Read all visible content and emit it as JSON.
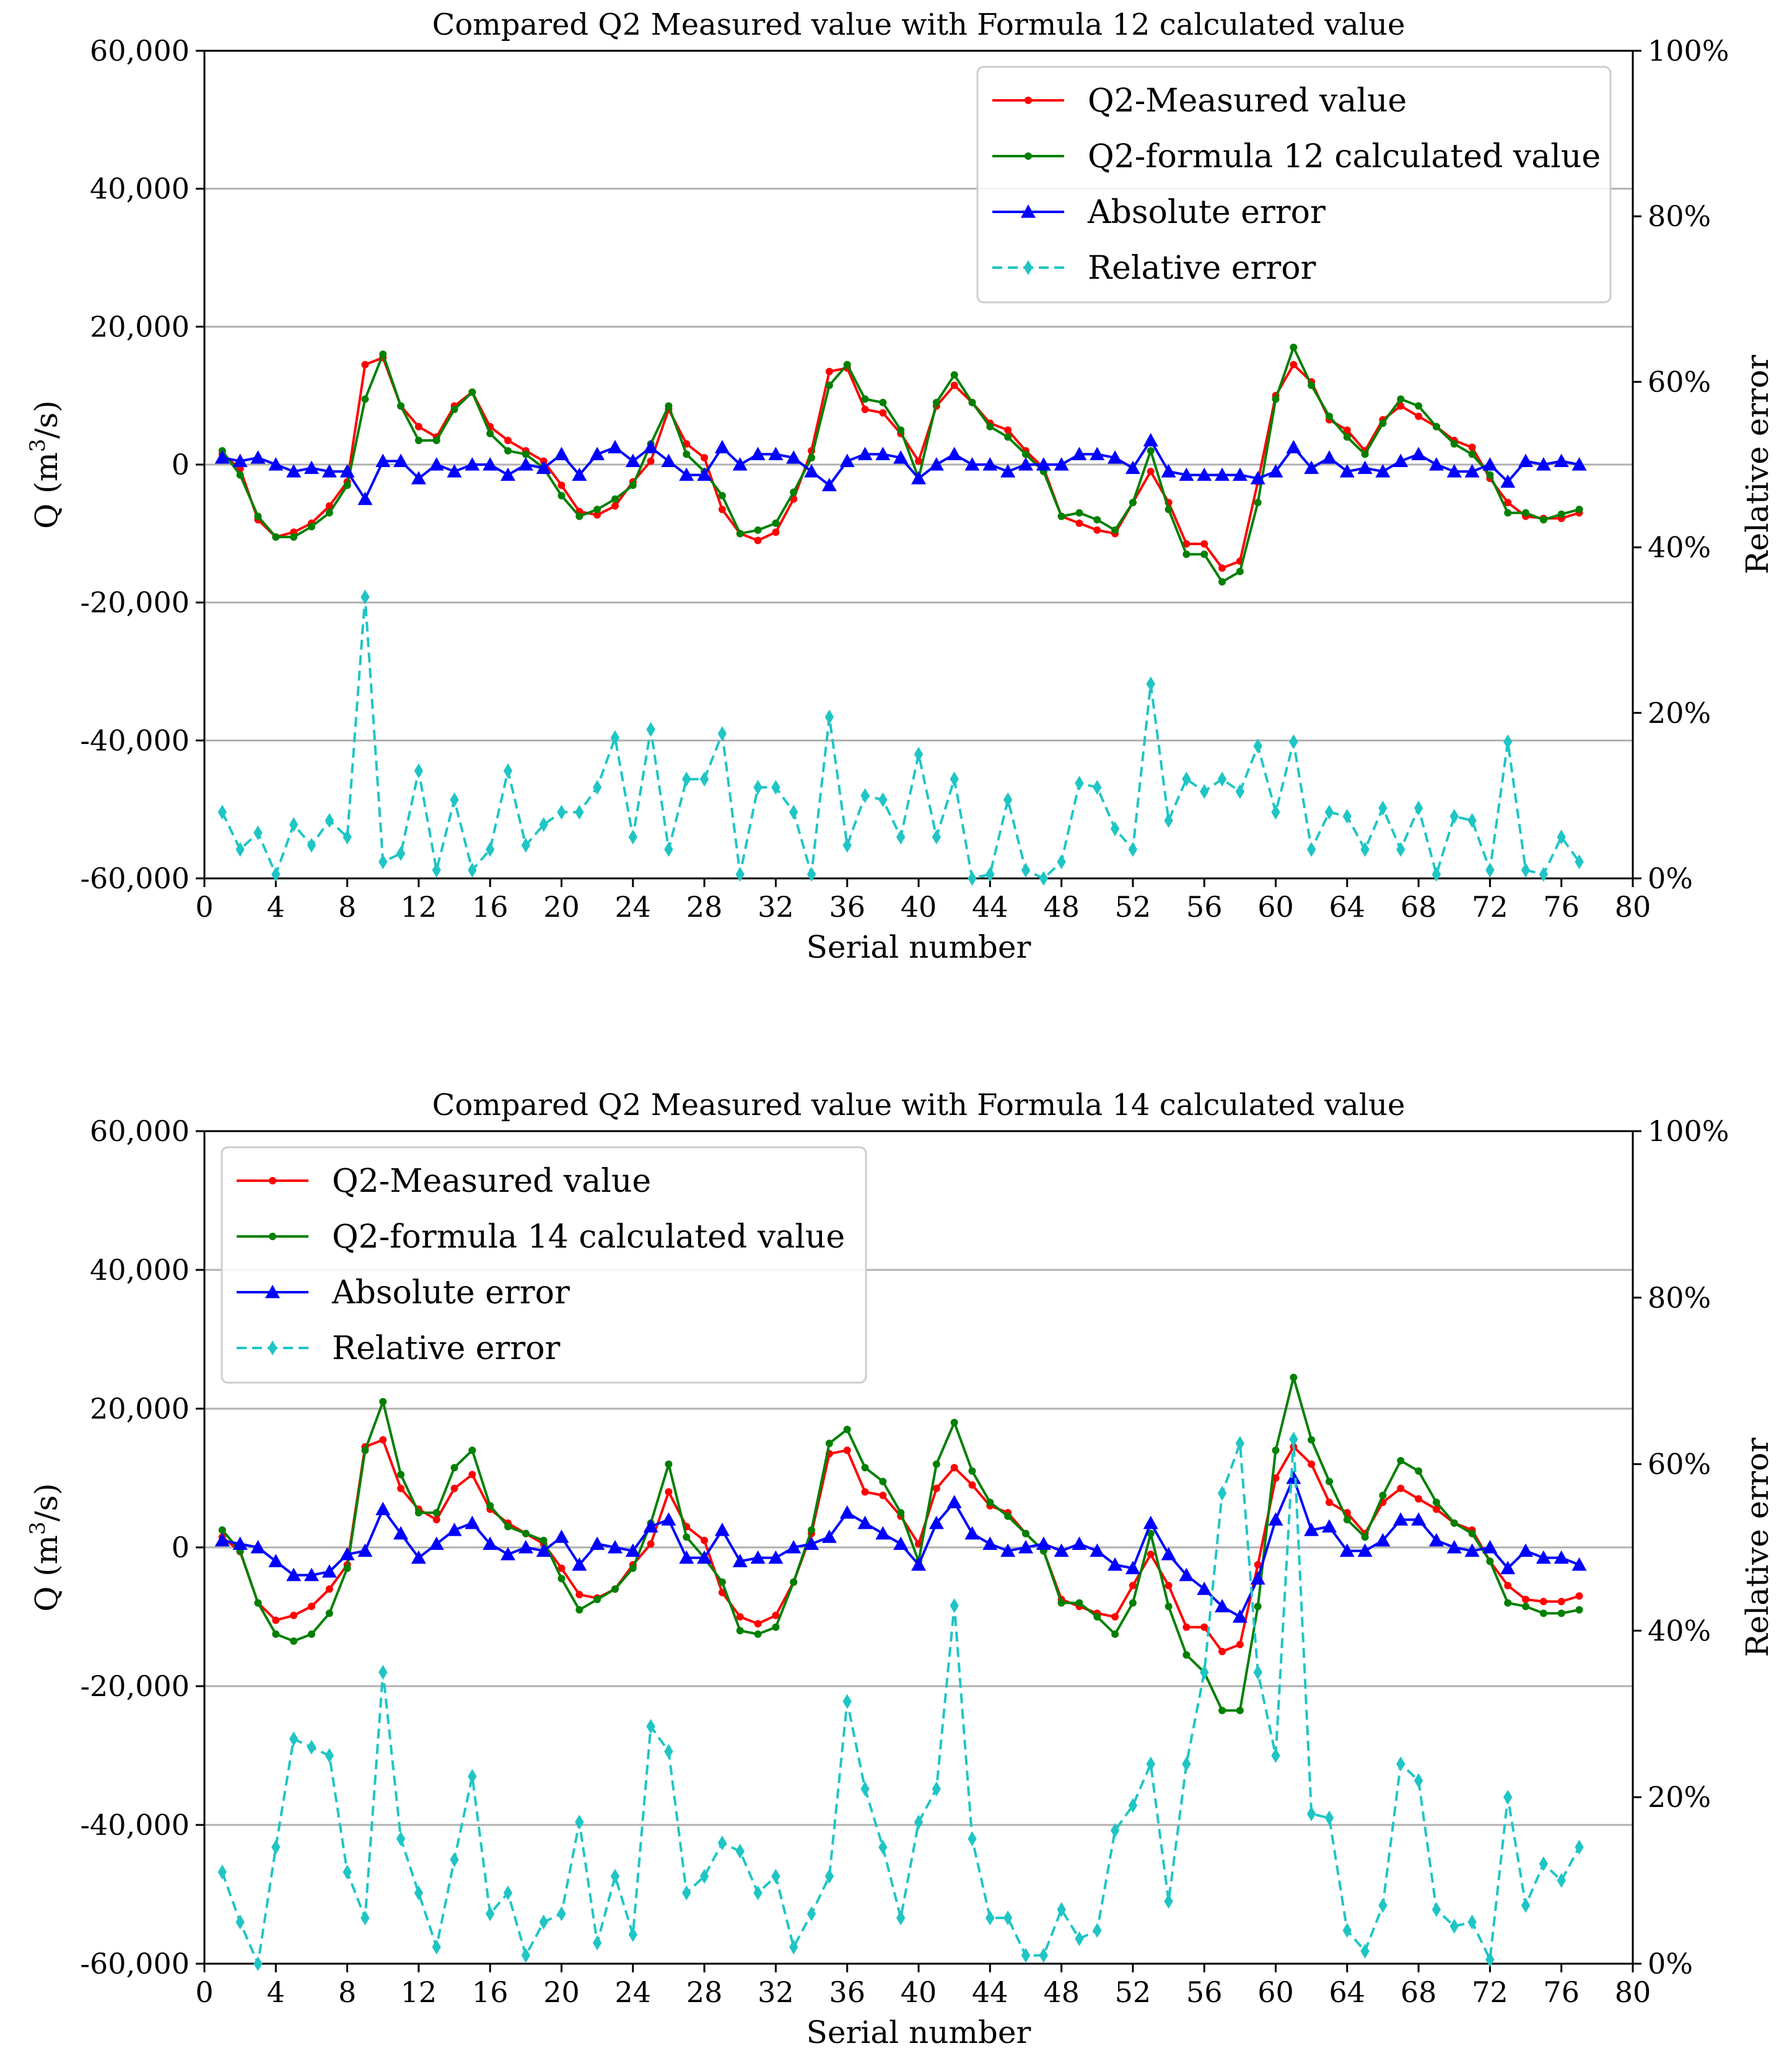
{
  "chart_data": [
    {
      "type": "line",
      "title": "Compared Q2 Measured value with Formula 12 calculated value",
      "xlabel": "Serial number",
      "ylabel": "Q (m3/s)",
      "ylabel_parts": {
        "pre": "Q (m",
        "sup": "3",
        "post": "/s)"
      },
      "y2label": "Relative error",
      "xlim": [
        0,
        80
      ],
      "ylim": [
        -60000,
        60000
      ],
      "y2lim": [
        0,
        100
      ],
      "x_ticks": [
        "0",
        "4",
        "8",
        "12",
        "16",
        "20",
        "24",
        "28",
        "32",
        "36",
        "40",
        "44",
        "48",
        "52",
        "56",
        "60",
        "64",
        "68",
        "72",
        "76",
        "80"
      ],
      "y_ticks": [
        "60,000",
        "40,000",
        "20,000",
        "0",
        "-20,000",
        "-40,000",
        "-60,000"
      ],
      "y2_ticks": [
        "100%",
        "80%",
        "60%",
        "40%",
        "20%",
        "0%"
      ],
      "grid": "horizontal",
      "legend_position": "top-right",
      "x": [
        1,
        2,
        3,
        4,
        5,
        6,
        7,
        8,
        9,
        10,
        11,
        12,
        13,
        14,
        15,
        16,
        17,
        18,
        19,
        20,
        21,
        22,
        23,
        24,
        25,
        26,
        27,
        28,
        29,
        30,
        31,
        32,
        33,
        34,
        35,
        36,
        37,
        38,
        39,
        40,
        41,
        42,
        43,
        44,
        45,
        46,
        47,
        48,
        49,
        50,
        51,
        52,
        53,
        54,
        55,
        56,
        57,
        58,
        59,
        60,
        61,
        62,
        63,
        64,
        65,
        66,
        67,
        68,
        69,
        70,
        71,
        72,
        73,
        74,
        75,
        76,
        77
      ],
      "series": [
        {
          "name": "Q2-Measured value",
          "axis": "left",
          "color": "#ff0000",
          "marker": "dot",
          "dash": false,
          "values": [
            1500,
            -600,
            -8000,
            -10500,
            -9800,
            -8500,
            -6000,
            -2500,
            14500,
            15500,
            8500,
            5500,
            4000,
            8500,
            10500,
            5500,
            3500,
            2000,
            500,
            -3000,
            -6800,
            -7300,
            -6000,
            -2500,
            500,
            8000,
            3000,
            1000,
            -6500,
            -10000,
            -11000,
            -9800,
            -5000,
            2000,
            13500,
            14000,
            8000,
            7500,
            4500,
            500,
            8500,
            11500,
            9000,
            6000,
            5000,
            2000,
            -500,
            -7500,
            -8500,
            -9500,
            -10000,
            -5500,
            -1000,
            -5500,
            -11500,
            -11500,
            -15000,
            -14000,
            -2500,
            10000,
            14500,
            12000,
            6500,
            5000,
            2000,
            6500,
            8500,
            7000,
            5500,
            3500,
            2500,
            -2000,
            -5500,
            -7500,
            -7800,
            -7800,
            -7000
          ]
        },
        {
          "name": "Q2-formula 12 calculated value",
          "axis": "left",
          "color": "#008000",
          "marker": "dot",
          "dash": false,
          "values": [
            2000,
            -1500,
            -7500,
            -10500,
            -10500,
            -9000,
            -7000,
            -3000,
            9500,
            16000,
            8500,
            3500,
            3500,
            8000,
            10500,
            4500,
            2000,
            1500,
            -500,
            -4500,
            -7500,
            -6500,
            -5000,
            -3000,
            3000,
            8500,
            1500,
            -1000,
            -4500,
            -10000,
            -9500,
            -8500,
            -4000,
            1000,
            11500,
            14500,
            9500,
            9000,
            5000,
            -2000,
            9000,
            13000,
            9000,
            5500,
            4000,
            1500,
            -1000,
            -7500,
            -7000,
            -8000,
            -9500,
            -5500,
            2000,
            -6500,
            -13000,
            -13000,
            -17000,
            -15500,
            -5500,
            9500,
            17000,
            11500,
            7000,
            4000,
            1500,
            6000,
            9500,
            8500,
            5500,
            3000,
            1500,
            -1500,
            -7000,
            -7000,
            -8000,
            -7200,
            -6500
          ]
        },
        {
          "name": "Absolute error",
          "axis": "left",
          "color": "#0000ff",
          "marker": "triangle",
          "dash": false,
          "values": [
            1000,
            500,
            1000,
            0,
            -1000,
            -500,
            -1000,
            -1000,
            -5000,
            500,
            500,
            -2000,
            0,
            -1000,
            0,
            0,
            -1500,
            0,
            -500,
            1500,
            -1500,
            1500,
            2500,
            500,
            2500,
            500,
            -1500,
            -1500,
            2500,
            0,
            1500,
            1500,
            1000,
            -1000,
            -3000,
            500,
            1500,
            1500,
            1000,
            -2000,
            0,
            1500,
            0,
            0,
            -1000,
            0,
            0,
            0,
            1500,
            1500,
            1000,
            -500,
            3500,
            -1000,
            -1500,
            -1500,
            -1500,
            -1500,
            -2000,
            -1000,
            2500,
            -500,
            1000,
            -1000,
            -500,
            -1000,
            500,
            1500,
            0,
            -1000,
            -1000,
            0,
            -2500,
            500,
            0,
            500,
            0
          ]
        },
        {
          "name": "Relative error",
          "axis": "right",
          "color": "#1fc5c5",
          "marker": "diamond",
          "dash": true,
          "values": [
            8,
            3.5,
            5.5,
            0.5,
            6.5,
            4,
            7,
            5,
            34,
            2,
            3,
            13,
            1,
            9.5,
            1,
            3.5,
            13,
            4,
            6.5,
            8,
            8,
            11,
            17,
            5,
            18,
            3.5,
            12,
            12,
            17.5,
            0.5,
            11,
            11,
            8,
            0.5,
            19.5,
            4,
            10,
            9.5,
            5,
            15,
            5,
            12,
            0,
            0.5,
            9.5,
            1,
            0,
            2,
            11.5,
            11,
            6,
            3.5,
            23.5,
            7,
            12,
            10.5,
            12,
            10.5,
            16,
            8,
            16.5,
            3.5,
            8,
            7.5,
            3.5,
            8.5,
            3.5,
            8.5,
            0.5,
            7.5,
            7,
            1,
            16.5,
            1,
            0.5,
            5,
            2
          ]
        }
      ]
    },
    {
      "type": "line",
      "title": "Compared Q2 Measured value with Formula 14 calculated value",
      "xlabel": "Serial number",
      "ylabel": "Q (m3/s)",
      "ylabel_parts": {
        "pre": "Q (m",
        "sup": "3",
        "post": "/s)"
      },
      "y2label": "Relative error",
      "xlim": [
        0,
        80
      ],
      "ylim": [
        -60000,
        60000
      ],
      "y2lim": [
        0,
        100
      ],
      "x_ticks": [
        "0",
        "4",
        "8",
        "12",
        "16",
        "20",
        "24",
        "28",
        "32",
        "36",
        "40",
        "44",
        "48",
        "52",
        "56",
        "60",
        "64",
        "68",
        "72",
        "76",
        "80"
      ],
      "y_ticks": [
        "60,000",
        "40,000",
        "20,000",
        "0",
        "-20,000",
        "-40,000",
        "-60,000"
      ],
      "y2_ticks": [
        "100%",
        "80%",
        "60%",
        "40%",
        "20%",
        "0%"
      ],
      "grid": "horizontal",
      "legend_position": "top-left",
      "x": [
        1,
        2,
        3,
        4,
        5,
        6,
        7,
        8,
        9,
        10,
        11,
        12,
        13,
        14,
        15,
        16,
        17,
        18,
        19,
        20,
        21,
        22,
        23,
        24,
        25,
        26,
        27,
        28,
        29,
        30,
        31,
        32,
        33,
        34,
        35,
        36,
        37,
        38,
        39,
        40,
        41,
        42,
        43,
        44,
        45,
        46,
        47,
        48,
        49,
        50,
        51,
        52,
        53,
        54,
        55,
        56,
        57,
        58,
        59,
        60,
        61,
        62,
        63,
        64,
        65,
        66,
        67,
        68,
        69,
        70,
        71,
        72,
        73,
        74,
        75,
        76,
        77
      ],
      "series": [
        {
          "name": "Q2-Measured value",
          "axis": "left",
          "color": "#ff0000",
          "marker": "dot",
          "dash": false,
          "values": [
            1500,
            -600,
            -8000,
            -10500,
            -9800,
            -8500,
            -6000,
            -2500,
            14500,
            15500,
            8500,
            5500,
            4000,
            8500,
            10500,
            5500,
            3500,
            2000,
            500,
            -3000,
            -6800,
            -7300,
            -6000,
            -2500,
            500,
            8000,
            3000,
            1000,
            -6500,
            -10000,
            -11000,
            -9800,
            -5000,
            2000,
            13500,
            14000,
            8000,
            7500,
            4500,
            500,
            8500,
            11500,
            9000,
            6000,
            5000,
            2000,
            -500,
            -7500,
            -8500,
            -9500,
            -10000,
            -5500,
            -1000,
            -5500,
            -11500,
            -11500,
            -15000,
            -14000,
            -2500,
            10000,
            14500,
            12000,
            6500,
            5000,
            2000,
            6500,
            8500,
            7000,
            5500,
            3500,
            2500,
            -2000,
            -5500,
            -7500,
            -7800,
            -7800,
            -7000
          ]
        },
        {
          "name": "Q2-formula 14 calculated value",
          "axis": "left",
          "color": "#008000",
          "marker": "dot",
          "dash": false,
          "values": [
            2500,
            -500,
            -8000,
            -12500,
            -13500,
            -12500,
            -9500,
            -3000,
            14000,
            21000,
            10500,
            5000,
            5000,
            11500,
            14000,
            6000,
            3000,
            2000,
            1000,
            -4500,
            -9000,
            -7500,
            -6000,
            -3000,
            3500,
            12000,
            1500,
            -1500,
            -5000,
            -12000,
            -12500,
            -11500,
            -5000,
            2500,
            15000,
            17000,
            11500,
            9500,
            5000,
            -2000,
            12000,
            18000,
            11000,
            6500,
            4500,
            2000,
            -500,
            -8000,
            -8000,
            -10000,
            -12500,
            -8000,
            2000,
            -8500,
            -15500,
            -18000,
            -23500,
            -23500,
            -8500,
            14000,
            24500,
            15500,
            9500,
            4000,
            1500,
            7500,
            12500,
            11000,
            6500,
            3500,
            2000,
            -2000,
            -8000,
            -8500,
            -9500,
            -9500,
            -9000
          ]
        },
        {
          "name": "Absolute error",
          "axis": "left",
          "color": "#0000ff",
          "marker": "triangle",
          "dash": false,
          "values": [
            1000,
            500,
            0,
            -2000,
            -4000,
            -4000,
            -3500,
            -1000,
            -500,
            5500,
            2000,
            -1500,
            500,
            2500,
            3500,
            500,
            -1000,
            0,
            -500,
            1500,
            -2500,
            500,
            0,
            -500,
            3000,
            4000,
            -1500,
            -1500,
            2500,
            -2000,
            -1500,
            -1500,
            0,
            500,
            1500,
            5000,
            3500,
            2000,
            500,
            -2500,
            3500,
            6500,
            2000,
            500,
            -500,
            0,
            500,
            -500,
            500,
            -500,
            -2500,
            -3000,
            3500,
            -1000,
            -4000,
            -6000,
            -8500,
            -10000,
            -4500,
            4000,
            10000,
            2500,
            3000,
            -500,
            -500,
            1000,
            4000,
            4000,
            1000,
            0,
            -500,
            0,
            -3000,
            -500,
            -1500,
            -1500,
            -2500
          ]
        },
        {
          "name": "Relative error",
          "axis": "right",
          "color": "#1fc5c5",
          "marker": "diamond",
          "dash": true,
          "values": [
            11,
            5,
            0,
            14,
            27,
            26,
            25,
            11,
            5.5,
            35,
            15,
            8.5,
            2,
            12.5,
            22.5,
            6,
            8.5,
            1,
            5,
            6,
            17,
            2.5,
            10.5,
            3.5,
            28.5,
            25.5,
            8.5,
            10.5,
            14.5,
            13.5,
            8.5,
            10.5,
            2,
            6,
            10.5,
            31.5,
            21,
            14,
            5.5,
            17,
            21,
            43,
            15,
            5.5,
            5.5,
            1,
            1,
            6.5,
            3,
            4,
            16,
            19,
            24,
            7.5,
            24,
            35,
            56.5,
            62.5,
            35,
            25,
            63,
            18,
            17.5,
            4,
            1.5,
            7,
            24,
            22,
            6.5,
            4.5,
            5,
            0.5,
            20,
            7,
            12,
            10,
            14
          ]
        }
      ]
    }
  ]
}
